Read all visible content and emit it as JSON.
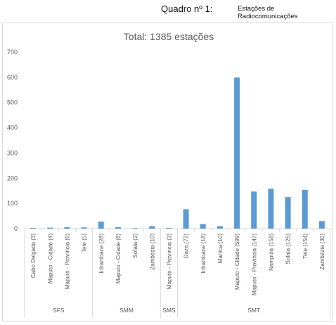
{
  "header": {
    "label": "Quadro nº 1:",
    "caption": "Estações de Radiocomunicações"
  },
  "chart_data": {
    "type": "bar",
    "title": "Total: 1385 estações",
    "xlabel": "",
    "ylabel": "",
    "ylim": [
      0,
      700
    ],
    "yticks": [
      "0",
      "100",
      "200",
      "300",
      "400",
      "500",
      "600",
      "700"
    ],
    "grid": false,
    "legend": "none",
    "bar_color": "#5b9bd5",
    "categories": [
      "Cabo Delgado (3)",
      "Maputo - Cidade (4)",
      "Maputo - Província (6)",
      "Tete (5)",
      "Inhambane (28)",
      "Maputo - Cidade (6)",
      "Sofala (2)",
      "Zambézia (10)",
      "Maputo - Província (3)",
      "Gaza (77)",
      "Inhambane (18)",
      "Manica (10)",
      "Maputo - Cidade (599)",
      "Maputo - Província (147)",
      "Nampula (158)",
      "Sofala (125)",
      "Tete (154)",
      "Zambézia (30)"
    ],
    "values": [
      3,
      4,
      6,
      5,
      28,
      6,
      2,
      10,
      3,
      77,
      18,
      10,
      599,
      147,
      158,
      125,
      154,
      30
    ],
    "groups": [
      {
        "name": "SFS",
        "count": 4
      },
      {
        "name": "SMM",
        "count": 4
      },
      {
        "name": "SMS",
        "count": 1
      },
      {
        "name": "SMT",
        "count": 9
      }
    ]
  }
}
